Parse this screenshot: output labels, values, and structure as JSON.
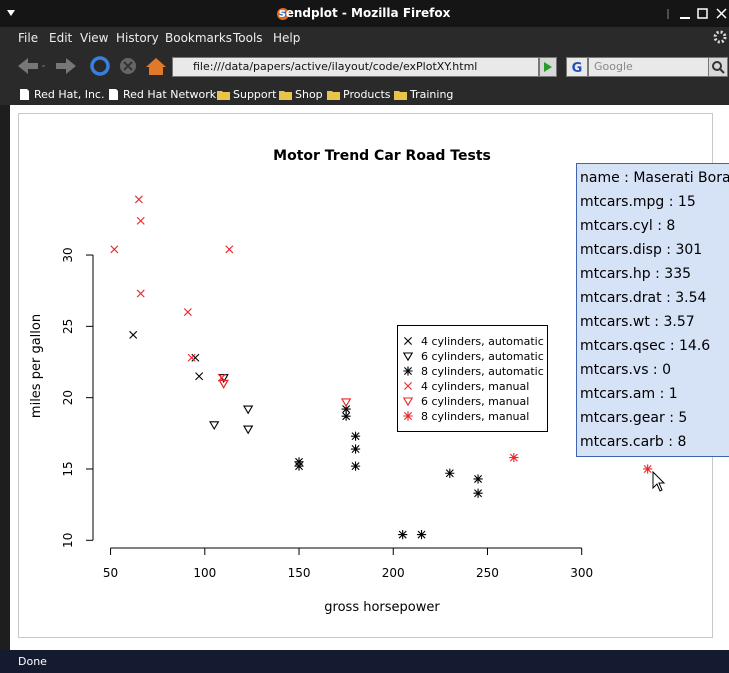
{
  "window": {
    "title": "sendplot - Mozilla Firefox"
  },
  "menu": [
    "File",
    "Edit",
    "View",
    "History",
    "Bookmarks",
    "Tools",
    "Help"
  ],
  "navbar": {
    "url": "file:///data/papers/active/ilayout/code/exPlotXY.html",
    "search": "Google"
  },
  "bookmarks": [
    "Red Hat, Inc.",
    "Red Hat Network",
    "Support",
    "Shop",
    "Products",
    "Training"
  ],
  "status": "Done",
  "tooltip": {
    "lines": [
      "name  : Maserati Bora",
      "mtcars.mpg  : 15",
      "mtcars.cyl  : 8",
      "mtcars.disp  : 301",
      "mtcars.hp  : 335",
      "mtcars.drat  : 3.54",
      "mtcars.wt  : 3.57",
      "mtcars.qsec  : 14.6",
      "mtcars.vs  : 0",
      "mtcars.am  : 1",
      "mtcars.gear  : 5",
      "mtcars.carb  : 8"
    ]
  },
  "chart_data": {
    "type": "scatter",
    "title": "Motor Trend Car Road Tests",
    "x_label": "gross horsepower",
    "y_label": "miles per gallon",
    "xlim": [
      40.68,
      346.32
    ],
    "ylim": [
      9.46,
      34.84
    ],
    "xticks": [
      50,
      100,
      150,
      200,
      250,
      300
    ],
    "yticks": [
      10,
      15,
      20,
      25,
      30
    ],
    "grid": false,
    "legend": "right",
    "series": [
      {
        "name": "4 cylinders, automatic",
        "color": "#000000",
        "marker": "x",
        "x": [
          62,
          95,
          97
        ],
        "values": [
          24.4,
          22.8,
          21.5
        ]
      },
      {
        "name": "6 cylinders, automatic",
        "color": "#000000",
        "marker": "triangle",
        "x": [
          110,
          105,
          123,
          123
        ],
        "values": [
          21.4,
          18.1,
          19.2,
          17.8
        ]
      },
      {
        "name": "8 cylinders, automatic",
        "color": "#000000",
        "marker": "asterisk",
        "x": [
          175,
          245,
          180,
          180,
          180,
          205,
          215,
          230,
          150,
          150,
          245,
          175
        ],
        "values": [
          18.7,
          14.3,
          16.4,
          17.3,
          15.2,
          10.4,
          10.4,
          14.7,
          15.5,
          15.2,
          13.3,
          19.2
        ]
      },
      {
        "name": "4 cylinders, manual",
        "color": "#e8262b",
        "marker": "x",
        "x": [
          93,
          66,
          52,
          65,
          66,
          91,
          113,
          109
        ],
        "values": [
          22.8,
          32.4,
          30.4,
          33.9,
          27.3,
          26.0,
          30.4,
          21.4
        ]
      },
      {
        "name": "6 cylinders, manual",
        "color": "#e8262b",
        "marker": "triangle",
        "x": [
          110,
          110,
          175
        ],
        "values": [
          21.0,
          21.0,
          19.7
        ]
      },
      {
        "name": "8 cylinders, manual",
        "color": "#e8262b",
        "marker": "asterisk",
        "x": [
          264,
          335
        ],
        "values": [
          15.8,
          15.0
        ]
      }
    ]
  }
}
